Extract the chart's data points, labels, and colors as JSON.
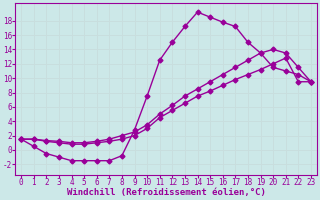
{
  "background_color": "#cce8e8",
  "grid_color": "#c8dede",
  "line_color": "#990099",
  "xlabel": "Windchill (Refroidissement éolien,°C)",
  "x_ticks": [
    0,
    1,
    2,
    3,
    4,
    5,
    6,
    7,
    8,
    9,
    10,
    11,
    12,
    13,
    14,
    15,
    16,
    17,
    18,
    19,
    20,
    21,
    22,
    23
  ],
  "y_ticks": [
    -2,
    0,
    2,
    4,
    6,
    8,
    10,
    12,
    14,
    16,
    18
  ],
  "xlim": [
    -0.5,
    23.5
  ],
  "ylim": [
    -3.5,
    20.5
  ],
  "line1_x": [
    0,
    1,
    2,
    3,
    4,
    5,
    6,
    7,
    8,
    9,
    10,
    11,
    12,
    13,
    14,
    15,
    16,
    17,
    18,
    19,
    20,
    21,
    22,
    23
  ],
  "line1_y": [
    1.5,
    0.5,
    -0.5,
    -1.0,
    -1.5,
    -1.5,
    -1.5,
    -1.5,
    -0.8,
    2.8,
    7.5,
    12.5,
    15.0,
    17.2,
    19.2,
    18.5,
    17.8,
    17.2,
    15.0,
    13.5,
    11.5,
    11.0,
    10.5,
    9.5
  ],
  "line2_x": [
    0,
    1,
    2,
    3,
    4,
    5,
    6,
    7,
    8,
    9,
    10,
    11,
    12,
    13,
    14,
    15,
    16,
    17,
    18,
    19,
    20,
    21,
    22,
    23
  ],
  "line2_y": [
    1.5,
    1.5,
    1.2,
    1.0,
    0.8,
    0.8,
    1.0,
    1.2,
    1.5,
    2.0,
    3.0,
    4.5,
    5.5,
    6.5,
    7.5,
    8.2,
    9.0,
    9.8,
    10.5,
    11.2,
    12.0,
    12.8,
    9.5,
    9.5
  ],
  "line3_x": [
    0,
    1,
    2,
    3,
    4,
    5,
    6,
    7,
    8,
    9,
    10,
    11,
    12,
    13,
    14,
    15,
    16,
    17,
    18,
    19,
    20,
    21,
    22,
    23
  ],
  "line3_y": [
    1.5,
    1.5,
    1.3,
    1.2,
    1.0,
    1.0,
    1.2,
    1.5,
    2.0,
    2.5,
    3.5,
    5.0,
    6.2,
    7.5,
    8.5,
    9.5,
    10.5,
    11.5,
    12.5,
    13.5,
    14.0,
    13.5,
    11.5,
    9.5
  ],
  "markersize": 2.5,
  "linewidth": 1.0,
  "tick_fontsize": 5.5,
  "label_fontsize": 6.5
}
